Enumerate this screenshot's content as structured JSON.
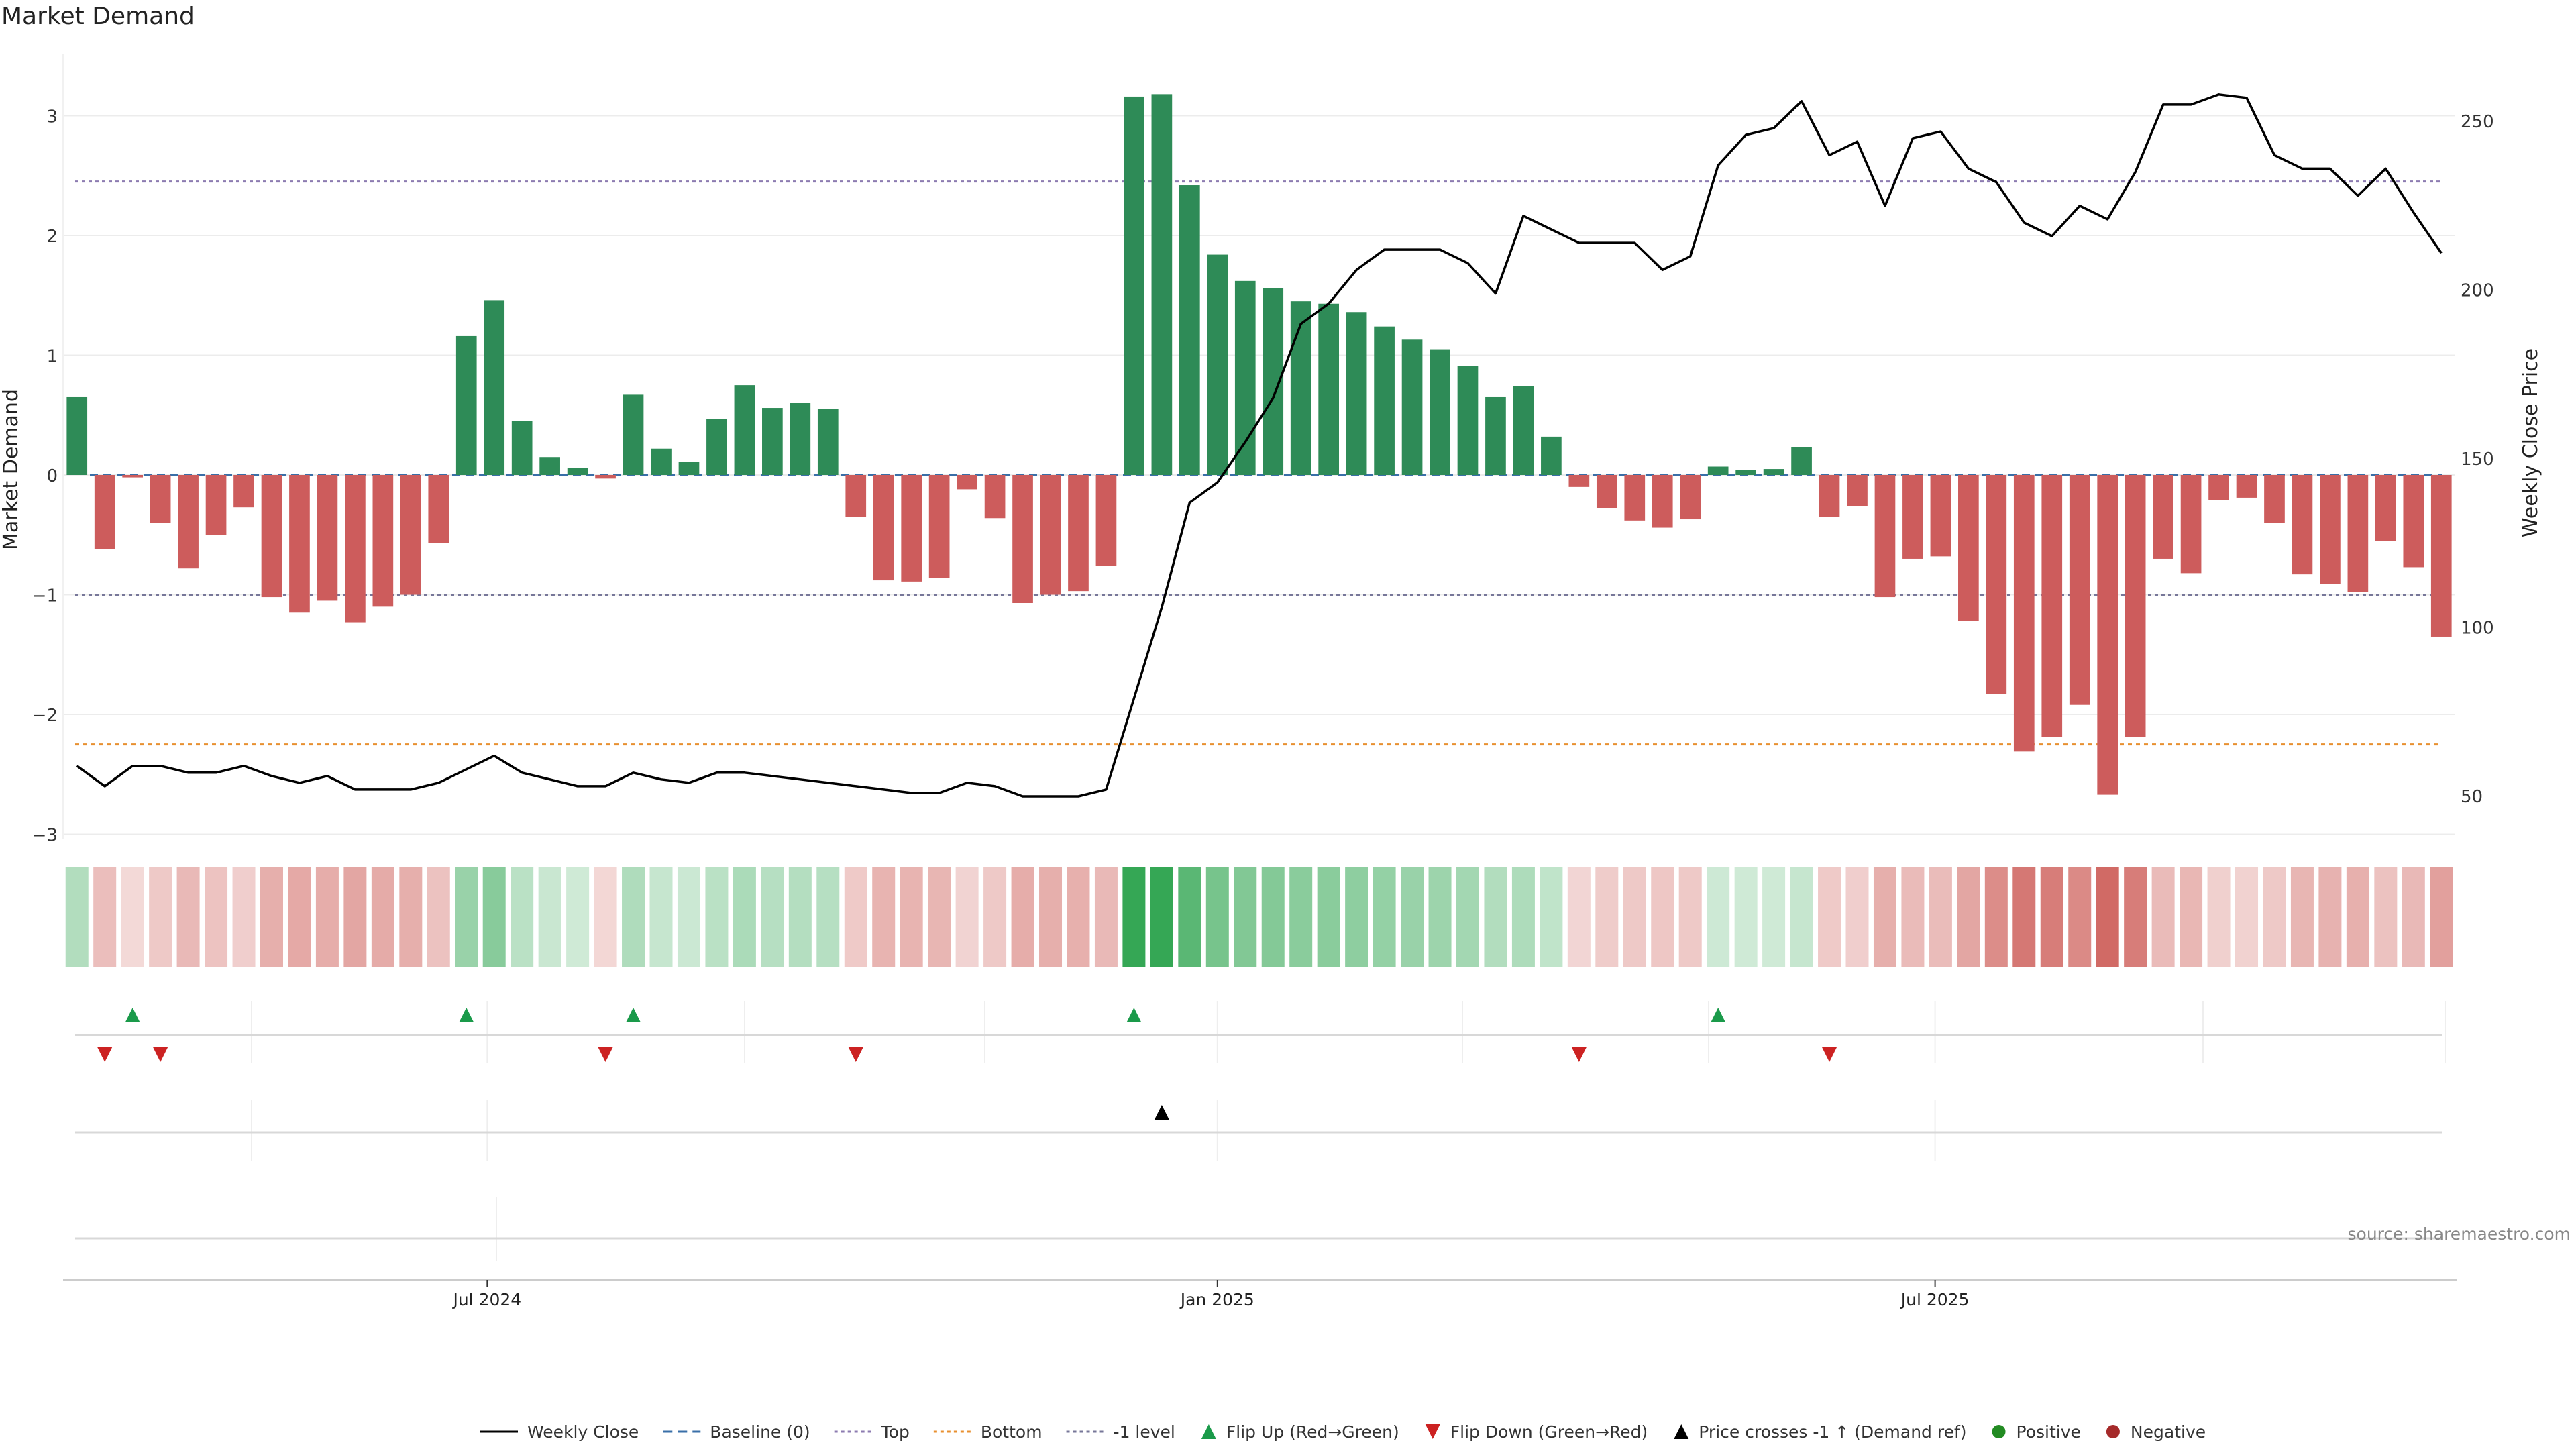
{
  "title": "Market Demand",
  "source_label": "source: sharemaestro.com",
  "colors": {
    "positive": "#2e8b57",
    "negative": "#cd5c5c",
    "price_line": "#000000",
    "top_line": "#8c7bb0",
    "bottom_line": "#e89030",
    "minus1_line": "#777799",
    "flip_up": "#1a9a4a",
    "flip_down": "#cc2222",
    "cross": "#000000"
  },
  "chart_data": {
    "type": "bar+line",
    "title": "Market Demand",
    "ylabel_left": "Market Demand",
    "ylabel_right": "Weekly Close Price",
    "ylim_left": [
      -3.3,
      3.5
    ],
    "ylim_right": [
      30,
      270
    ],
    "yticks_left": [
      3,
      2,
      1,
      0,
      -1,
      -2,
      -3
    ],
    "ytick_labels_left": [
      "3",
      "2",
      "1",
      "0",
      "−1",
      "−2",
      "−3"
    ],
    "yticks_right": [
      250,
      200,
      150,
      100,
      50
    ],
    "ytick_labels_right": [
      "250",
      "200",
      "150",
      "100",
      "50"
    ],
    "top_level": 2.45,
    "bottom_level": -2.25,
    "minus1_level": -1,
    "x_tick_labels": [
      {
        "label": "Jul 2024",
        "index": 15.25
      },
      {
        "label": "Jan 2025",
        "index": 41.5
      },
      {
        "label": "Jul 2025",
        "index": 67.3
      }
    ],
    "demand": [
      0.65,
      -0.62,
      -0.02,
      -0.4,
      -0.78,
      -0.5,
      -0.27,
      -1.02,
      -1.15,
      -1.05,
      -1.23,
      -1.1,
      -1.0,
      -0.57,
      1.16,
      1.46,
      0.45,
      0.15,
      0.06,
      -0.03,
      0.67,
      0.22,
      0.11,
      0.47,
      0.75,
      0.56,
      0.6,
      0.55,
      -0.35,
      -0.88,
      -0.89,
      -0.86,
      -0.12,
      -0.36,
      -1.07,
      -1.0,
      -0.97,
      -0.76,
      3.16,
      3.18,
      2.42,
      1.84,
      1.62,
      1.56,
      1.45,
      1.43,
      1.36,
      1.24,
      1.13,
      1.05,
      0.91,
      0.65,
      0.74,
      0.32,
      -0.1,
      -0.28,
      -0.38,
      -0.44,
      -0.37,
      0.07,
      0.04,
      0.05,
      0.23,
      -0.35,
      -0.26,
      -1.02,
      -0.7,
      -0.68,
      -1.22,
      -1.83,
      -2.31,
      -2.19,
      -1.92,
      -2.67,
      -2.19,
      -0.7,
      -0.82,
      -0.21,
      -0.19,
      -0.4,
      -0.83,
      -0.91,
      -0.98,
      -0.55,
      -0.77,
      -1.35
    ],
    "price_x": [
      0.5,
      1.5,
      2.5,
      3.5,
      4.5,
      5.5,
      6.5,
      7.5,
      8.5,
      9.5,
      10.5,
      11.5,
      12.5,
      13.5,
      14.5,
      15.5,
      16.5,
      17.5,
      18.5,
      19.5,
      20.5,
      21.5,
      22.5,
      23.5,
      24.5,
      25.5,
      26.5,
      27.5,
      28.5,
      29.5,
      30.5,
      31.5,
      32.5,
      33.5,
      34.5,
      35.5,
      36.5,
      37.5,
      38.5,
      39.5,
      40.5,
      41.5,
      42.5,
      43.5,
      44.5,
      45.5,
      46.5,
      47.5,
      48.5,
      49.5,
      50.5,
      51.5,
      52.5,
      53.5,
      54.5,
      55.5,
      56.5,
      57.5,
      58.5,
      59.5,
      60.5,
      61.5,
      62.5,
      63.5,
      64.5,
      65.5,
      66.5,
      67.5,
      68.5,
      69.5,
      70.5,
      71.5,
      72.5,
      73.5,
      74.5,
      75.5,
      76.5,
      77.5,
      78.5,
      79.5,
      80.5,
      81.5,
      82.5,
      83.5,
      84.5,
      85.5
    ],
    "price": [
      59,
      53,
      59,
      59,
      57,
      57,
      59,
      56,
      54,
      56,
      52,
      52,
      52,
      54,
      58,
      62,
      57,
      55,
      53,
      53,
      57,
      55,
      54,
      57,
      57,
      56,
      55,
      54,
      53,
      52,
      51,
      51,
      54,
      53,
      50,
      50,
      50,
      52,
      79,
      106,
      137,
      143,
      155,
      168,
      190,
      196,
      206,
      212,
      212,
      212,
      208,
      199,
      222,
      218,
      214,
      214,
      214,
      206,
      210,
      237,
      246,
      248,
      256,
      240,
      244,
      225,
      245,
      247,
      236,
      232,
      220,
      216,
      225,
      221,
      235,
      255,
      255,
      258,
      257,
      240,
      236,
      236,
      228,
      236,
      223,
      211
    ],
    "heat_strip": "one cell per week, shade follows the sign and strength of demand",
    "flip_up_weeks": [
      2,
      14,
      20,
      38,
      59
    ],
    "flip_down_weeks": [
      1,
      3,
      19,
      28,
      54,
      63
    ],
    "price_cross_weeks": [
      39
    ]
  },
  "legend": [
    {
      "label": "Weekly Close",
      "kind": "line-solid",
      "color": "#000000"
    },
    {
      "label": "Baseline (0)",
      "kind": "line-dashed",
      "color": "#3a6fa8"
    },
    {
      "label": "Top",
      "kind": "line-dotted",
      "color": "#8c7bb0"
    },
    {
      "label": "Bottom",
      "kind": "line-dotted",
      "color": "#e89030"
    },
    {
      "label": "-1 level",
      "kind": "line-dotted",
      "color": "#777799"
    },
    {
      "label": "Flip Up (Red→Green)",
      "kind": "tri-up",
      "color": "#1a9a4a"
    },
    {
      "label": "Flip Down (Green→Red)",
      "kind": "tri-down",
      "color": "#cc2222"
    },
    {
      "label": "Price crosses -1 ↑ (Demand ref)",
      "kind": "tri-up",
      "color": "#000000"
    },
    {
      "label": "Positive",
      "kind": "dot",
      "color": "#228b22"
    },
    {
      "label": "Negative",
      "kind": "dot",
      "color": "#a52a2a"
    }
  ]
}
